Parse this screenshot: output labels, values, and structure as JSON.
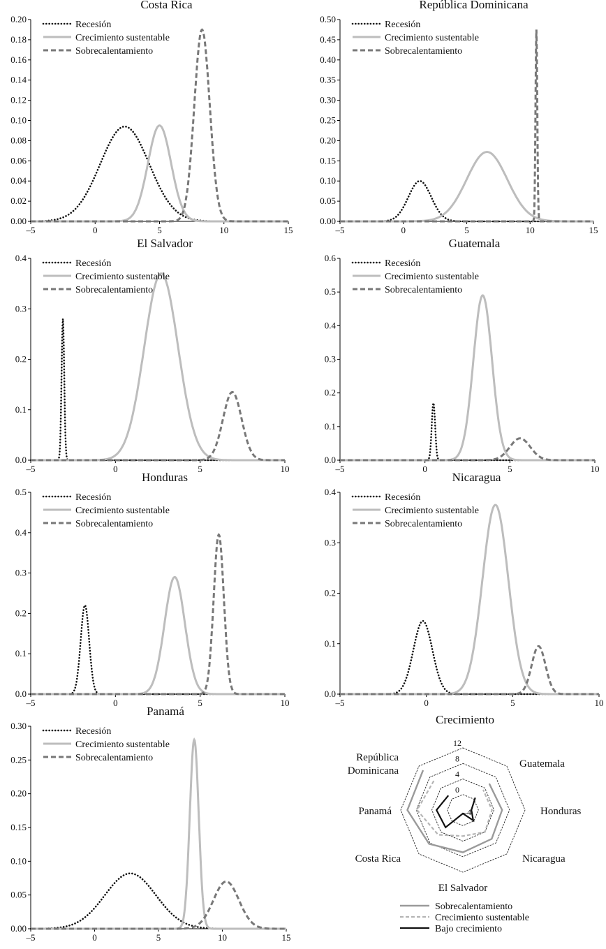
{
  "chart_data": [
    {
      "type": "line",
      "title": "Costa Rica",
      "xlim": [
        -5,
        15
      ],
      "ylim": [
        0,
        0.2
      ],
      "x_ticks": [
        "-5",
        "0",
        "5",
        "10",
        "15"
      ],
      "y_ticks": [
        "0.00",
        "0.02",
        "0.04",
        "0.06",
        "0.08",
        "0.10",
        "0.12",
        "0.14",
        "0.16",
        "0.18",
        "0.20"
      ],
      "legend": [
        "Recesión",
        "Crecimiento sustentable",
        "Sobrecalentamiento"
      ],
      "series": [
        {
          "name": "Recesión",
          "mean": 2.3,
          "peak": 0.094,
          "sd": 1.9
        },
        {
          "name": "Crecimiento sustentable",
          "mean": 5.0,
          "peak": 0.095,
          "sd": 0.9
        },
        {
          "name": "Sobrecalentamiento",
          "mean": 8.3,
          "peak": 0.19,
          "sd": 0.6
        }
      ]
    },
    {
      "type": "line",
      "title": "República Dominicana",
      "xlim": [
        -5,
        15
      ],
      "ylim": [
        0,
        0.5
      ],
      "x_ticks": [
        "-5",
        "0",
        "5",
        "10",
        "15"
      ],
      "y_ticks": [
        "0.00",
        "0.05",
        "0.10",
        "0.15",
        "0.20",
        "0.25",
        "0.30",
        "0.35",
        "0.40",
        "0.45",
        "0.50"
      ],
      "legend": [
        "Recesión",
        "Crecimiento sustentable",
        "Sobrecalentamiento"
      ],
      "series": [
        {
          "name": "Recesión",
          "mean": 1.3,
          "peak": 0.1,
          "sd": 0.9
        },
        {
          "name": "Crecimiento sustentable",
          "mean": 6.6,
          "peak": 0.172,
          "sd": 1.6
        },
        {
          "name": "Sobrecalentamiento",
          "mean": 10.5,
          "peak": 0.475,
          "sd": 0.07
        }
      ]
    },
    {
      "type": "line",
      "title": "El Salvador",
      "xlim": [
        -5,
        10
      ],
      "ylim": [
        0,
        0.4
      ],
      "x_ticks": [
        "-5",
        "0",
        "5",
        "10"
      ],
      "y_ticks": [
        "0.0",
        "0.1",
        "0.2",
        "0.3",
        "0.4"
      ],
      "legend": [
        "Recesión",
        "Crecimiento sustentable",
        "Sobrecalentamiento"
      ],
      "series": [
        {
          "name": "Recesión",
          "mean": -3.1,
          "peak": 0.28,
          "sd": 0.08
        },
        {
          "name": "Crecimiento sustentable",
          "mean": 2.7,
          "peak": 0.37,
          "sd": 1.0
        },
        {
          "name": "Sobrecalentamiento",
          "mean": 6.9,
          "peak": 0.135,
          "sd": 0.55
        }
      ]
    },
    {
      "type": "line",
      "title": "Guatemala",
      "xlim": [
        -5,
        10
      ],
      "ylim": [
        0,
        0.6
      ],
      "x_ticks": [
        "-5",
        "0",
        "5",
        "10"
      ],
      "y_ticks": [
        "0.0",
        "0.1",
        "0.2",
        "0.3",
        "0.4",
        "0.5",
        "0.6"
      ],
      "legend": [
        "Recesión",
        "Crecimiento sustentable",
        "Sobrecalentamiento"
      ],
      "series": [
        {
          "name": "Recesión",
          "mean": 0.5,
          "peak": 0.17,
          "sd": 0.1
        },
        {
          "name": "Crecimiento sustentable",
          "mean": 3.4,
          "peak": 0.49,
          "sd": 0.55
        },
        {
          "name": "Sobrecalentamiento",
          "mean": 5.6,
          "peak": 0.065,
          "sd": 0.6
        }
      ]
    },
    {
      "type": "line",
      "title": "Honduras",
      "xlim": [
        -5,
        10
      ],
      "ylim": [
        0,
        0.5
      ],
      "x_ticks": [
        "-5",
        "0",
        "5",
        "10"
      ],
      "y_ticks": [
        "0.0",
        "0.1",
        "0.2",
        "0.3",
        "0.4",
        "0.5"
      ],
      "legend": [
        "Recesión",
        "Crecimiento sustentable",
        "Sobrecalentamiento"
      ],
      "series": [
        {
          "name": "Recesión",
          "mean": -1.8,
          "peak": 0.22,
          "sd": 0.25
        },
        {
          "name": "Crecimiento sustentable",
          "mean": 3.5,
          "peak": 0.29,
          "sd": 0.6
        },
        {
          "name": "Sobrecalentamiento",
          "mean": 6.1,
          "peak": 0.395,
          "sd": 0.3
        }
      ]
    },
    {
      "type": "line",
      "title": "Nicaragua",
      "xlim": [
        -5,
        10
      ],
      "ylim": [
        0,
        0.4
      ],
      "x_ticks": [
        "-5",
        "0",
        "5",
        "10"
      ],
      "y_ticks": [
        "0.0",
        "0.1",
        "0.2",
        "0.3",
        "0.4"
      ],
      "legend": [
        "Recesión",
        "Crecimiento sustentable",
        "Sobrecalentamiento"
      ],
      "series": [
        {
          "name": "Recesión",
          "mean": -0.2,
          "peak": 0.145,
          "sd": 0.55
        },
        {
          "name": "Crecimiento sustentable",
          "mean": 4.0,
          "peak": 0.375,
          "sd": 0.75
        },
        {
          "name": "Sobrecalentamiento",
          "mean": 6.5,
          "peak": 0.095,
          "sd": 0.4
        }
      ]
    },
    {
      "type": "line",
      "title": "Panamá",
      "xlim": [
        -5,
        15
      ],
      "ylim": [
        0,
        0.3
      ],
      "x_ticks": [
        "-5",
        "0",
        "5",
        "10",
        "15"
      ],
      "y_ticks": [
        "0.00",
        "0.05",
        "0.10",
        "0.15",
        "0.20",
        "0.25",
        "0.30"
      ],
      "legend": [
        "Recesión",
        "Crecimiento sustentable",
        "Sobrecalentamiento"
      ],
      "series": [
        {
          "name": "Recesión",
          "mean": 2.8,
          "peak": 0.082,
          "sd": 2.0
        },
        {
          "name": "Crecimiento sustentable",
          "mean": 7.8,
          "peak": 0.28,
          "sd": 0.35
        },
        {
          "name": "Sobrecalentamiento",
          "mean": 10.3,
          "peak": 0.07,
          "sd": 1.0
        }
      ]
    },
    {
      "type": "radar",
      "title": "Crecimiento",
      "rlim": [
        -4,
        12
      ],
      "r_ticks": [
        "-4",
        "0",
        "4",
        "8",
        "12"
      ],
      "categories": [
        "República Dominicana",
        "Panamá",
        "Costa Rica",
        "El Salvador",
        "Nicaragua",
        "Honduras",
        "Guatemala"
      ],
      "category_lines": {
        "República Dominicana": [
          "República",
          "Dominicana"
        ]
      },
      "legend": [
        "Sobrecalentamiento",
        "Crecimiento sustentable",
        "Bajo crecimiento"
      ],
      "series": [
        {
          "name": "Sobrecalentamiento",
          "values": [
            10.5,
            10.3,
            8.3,
            6.9,
            6.5,
            6.1,
            5.6
          ]
        },
        {
          "name": "Crecimiento sustentable",
          "values": [
            6.6,
            7.8,
            5.0,
            2.7,
            4.0,
            3.5,
            3.4
          ]
        },
        {
          "name": "Bajo crecimiento",
          "values": [
            1.3,
            2.8,
            2.3,
            -3.1,
            -0.2,
            -1.8,
            0.5
          ]
        }
      ]
    }
  ],
  "colors": {
    "recesion": "#111111",
    "sustentable": "#bdbdbd",
    "sobrecalentamiento": "#787878",
    "sob_radar": "#9a9a9a",
    "sus_radar": "#b5b5b5",
    "bajo_radar": "#111111"
  }
}
